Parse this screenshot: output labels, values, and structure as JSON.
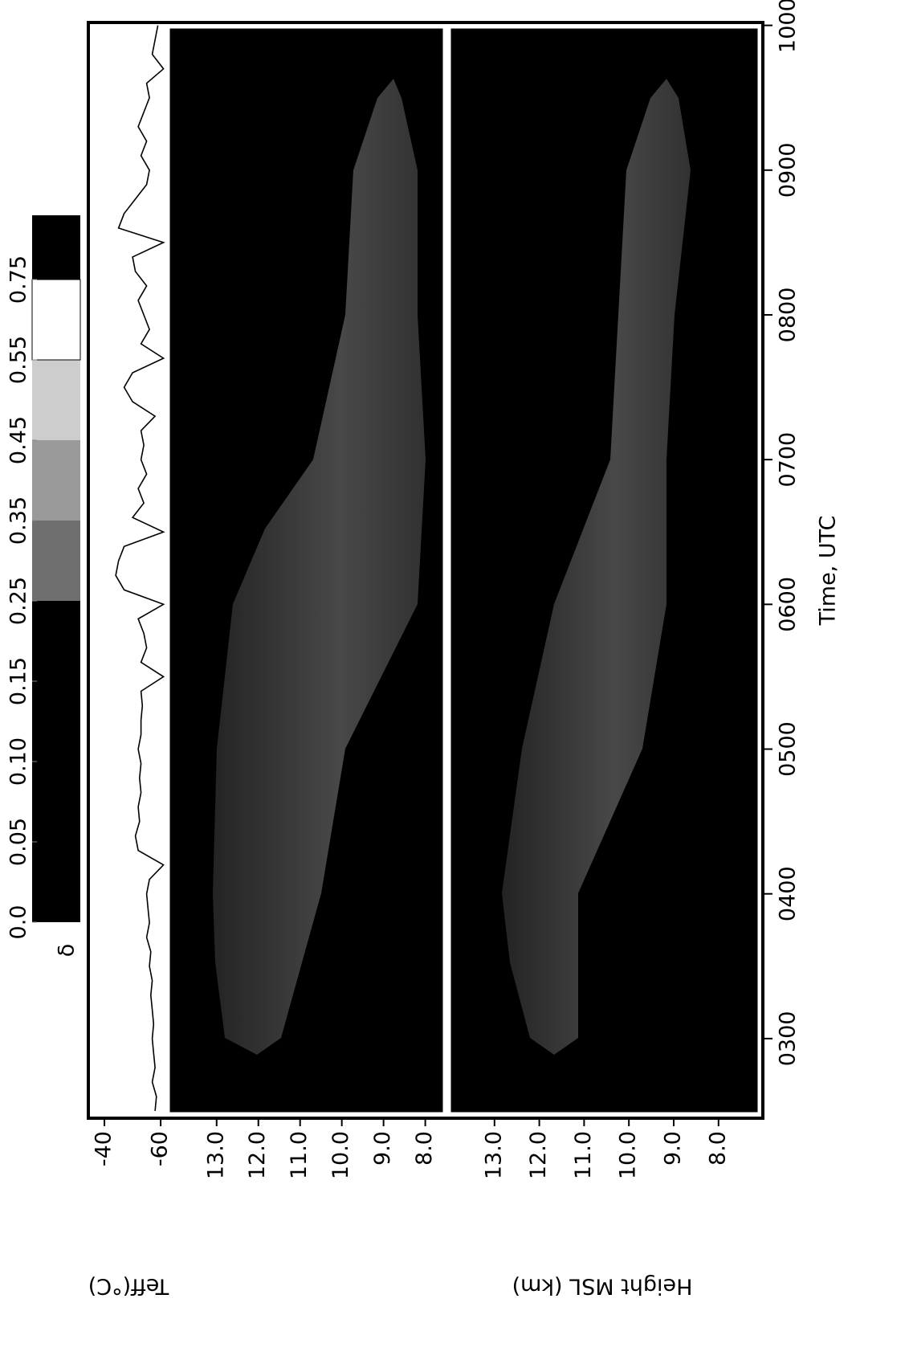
{
  "chart_data": [
    {
      "type": "line",
      "ylabel": "Teff(°C)",
      "x": [
        2.5,
        2.6,
        2.7,
        2.8,
        2.9,
        3.0,
        3.1,
        3.2,
        3.3,
        3.4,
        3.5,
        3.6,
        3.7,
        3.8,
        3.9,
        4.0,
        4.1,
        4.2,
        4.3,
        4.4,
        4.5,
        4.6,
        4.7,
        4.8,
        4.9,
        5.0,
        5.1,
        5.2,
        5.3,
        5.4,
        5.5,
        5.6,
        5.7,
        5.8,
        5.9,
        6.0,
        6.1,
        6.2,
        6.3,
        6.4,
        6.5,
        6.6,
        6.7,
        6.8,
        6.9,
        7.0,
        7.1,
        7.2,
        7.3,
        7.4,
        7.5,
        7.6,
        7.7,
        7.8,
        7.9,
        8.0,
        8.1,
        8.2,
        8.3,
        8.4,
        8.5,
        8.6,
        8.7,
        8.8,
        8.9,
        9.0,
        9.1,
        9.2,
        9.3,
        9.4,
        9.5,
        9.6,
        9.7,
        9.8,
        9.9,
        10.0
      ],
      "series": [
        {
          "color": "#000000",
          "values": [
            -58,
            -58.5,
            -57,
            -58,
            -57.5,
            -57,
            -57.5,
            -57,
            -56.5,
            -57,
            -56,
            -56.5,
            -55,
            -56,
            -55.5,
            -55,
            -56,
            -61,
            -52,
            -51,
            -52.5,
            -52,
            -53,
            -52.5,
            -53,
            -52,
            -53,
            -53,
            -53.5,
            -53,
            -61,
            -53,
            -55,
            -54,
            -52,
            -61,
            -47,
            -44,
            -45,
            -47,
            -61,
            -50,
            -54,
            -52,
            -55,
            -53,
            -54,
            -53,
            -58,
            -50,
            -47,
            -50,
            -61,
            -53,
            -56,
            -54,
            -52,
            -55,
            -51,
            -50,
            -61,
            -45,
            -47,
            -51,
            -55,
            -56,
            -53,
            -55,
            -52,
            -54,
            -56,
            -55,
            -61,
            -57,
            -58,
            -59
          ]
        }
      ],
      "xlim": [
        2.45,
        10.02
      ],
      "ylim": [
        -61.4,
        -35.7
      ],
      "yticks": [
        -40,
        -60
      ],
      "colorbar": {
        "label": "δ",
        "ticks": [
          {
            "value": 0,
            "label": "0.0"
          },
          0.05,
          {
            "value": 0.1,
            "label": "0.10"
          },
          0.15,
          0.25,
          0.35,
          0.45,
          0.55,
          0.75
        ],
        "colors": [
          "#000000",
          "#000000",
          "#000000",
          "#000000",
          "#6e6e6e",
          "#9a9a9a",
          "#cdcdcd",
          "#ffffff",
          "#000000"
        ]
      }
    },
    {
      "type": "image",
      "ylabel": "Height MSL (km)",
      "xlim": [
        2.45,
        10.02
      ],
      "ylim": [
        7.55,
        14.15
      ],
      "yticks": [
        {
          "value": 13,
          "label": "13.0"
        },
        {
          "value": 12,
          "label": "12.0"
        },
        {
          "value": 11,
          "label": "11.0"
        },
        {
          "value": 10,
          "label": "10.0"
        },
        {
          "value": 9,
          "label": "9.0"
        },
        {
          "value": 8,
          "label": "8.0"
        }
      ]
    },
    {
      "type": "image",
      "xlabel": "Time, UTC",
      "xlim": [
        2.45,
        10.02
      ],
      "ylim": [
        7.1,
        14.0
      ],
      "yticks": [
        {
          "value": 13,
          "label": "13.0"
        },
        {
          "value": 12,
          "label": "12.0"
        },
        {
          "value": 11,
          "label": "11.0"
        },
        {
          "value": 10,
          "label": "10.0"
        },
        {
          "value": 9,
          "label": "9.0"
        },
        {
          "value": 8,
          "label": "8.0"
        }
      ],
      "xticks": [
        {
          "value": 3,
          "label": "0300"
        },
        {
          "value": 4,
          "label": "0400"
        },
        {
          "value": 5,
          "label": "0500"
        },
        {
          "value": 6,
          "label": "0600"
        },
        {
          "value": 7,
          "label": "0700"
        },
        {
          "value": 8,
          "label": "0800"
        },
        {
          "value": 9,
          "label": "0900"
        },
        {
          "value": 10,
          "label": "1000"
        }
      ]
    }
  ]
}
